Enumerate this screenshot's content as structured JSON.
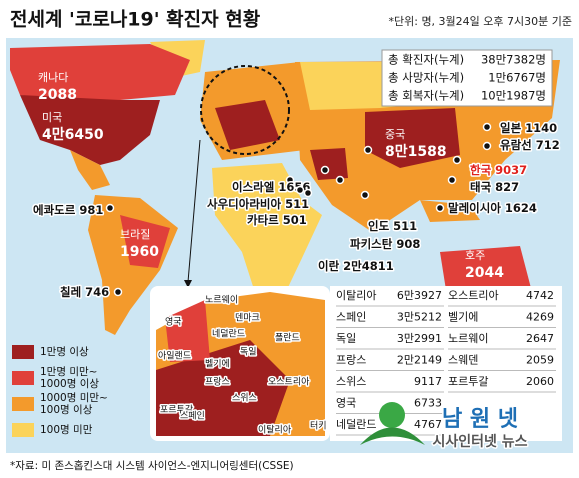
{
  "header": {
    "title": "전세계 '코로나19' 확진자 현황",
    "unit_note": "*단위: 명, 3월24일 오후 7시30분 기준"
  },
  "totals": [
    {
      "label": "총 확진자(누계)",
      "value": "38만7382명"
    },
    {
      "label": "총 사망자(누계)",
      "value": "1만6767명"
    },
    {
      "label": "총 회복자(누계)",
      "value": "10만1987명"
    }
  ],
  "map_labels": [
    {
      "name": "캐나다",
      "value": "2088",
      "color": "#ffffff"
    },
    {
      "name": "미국",
      "value": "4만6450",
      "color": "#ffffff"
    },
    {
      "name": "중국",
      "value": "8만1588",
      "color": "#ffffff"
    },
    {
      "name": "일본",
      "value": "1140",
      "color": "#111111"
    },
    {
      "name": "유람선",
      "value": "712",
      "color": "#111111"
    },
    {
      "name": "한국",
      "value": "9037",
      "color": "#e0201b"
    },
    {
      "name": "태국",
      "value": "827",
      "color": "#111111"
    },
    {
      "name": "말레이시아",
      "value": "1624",
      "color": "#111111"
    },
    {
      "name": "이스라엘",
      "value": "1656",
      "color": "#111111"
    },
    {
      "name": "사우디아라비아",
      "value": "511",
      "color": "#111111"
    },
    {
      "name": "카타르",
      "value": "501",
      "color": "#111111"
    },
    {
      "name": "인도",
      "value": "511",
      "color": "#111111"
    },
    {
      "name": "파키스탄",
      "value": "908",
      "color": "#111111"
    },
    {
      "name": "이란",
      "value": "2만4811",
      "color": "#111111"
    },
    {
      "name": "에콰도르",
      "value": "981",
      "color": "#111111"
    },
    {
      "name": "브라질",
      "value": "1960",
      "color": "#ffffff"
    },
    {
      "name": "칠레",
      "value": "746",
      "color": "#111111"
    },
    {
      "name": "호주",
      "value": "2044",
      "color": "#ffffff"
    }
  ],
  "legend": [
    {
      "label": "1만명 이상",
      "color": "#9e1f1f"
    },
    {
      "label": "1만명 미만~\n1000명 이상",
      "color": "#e0403a"
    },
    {
      "label": "1000명 미만~\n100명 이상",
      "color": "#f39a2c"
    },
    {
      "label": "100명 미만",
      "color": "#fbd35a"
    }
  ],
  "europe_labels": [
    "노르웨이",
    "영국",
    "덴마크",
    "네덜란드",
    "아일랜드",
    "독일",
    "벨기에",
    "폴란드",
    "프랑스",
    "스위스",
    "오스트리아",
    "포르투갈",
    "스페인",
    "이탈리아",
    "터키"
  ],
  "europe_table": {
    "left": [
      [
        "이탈리아",
        "6만3927"
      ],
      [
        "스페인",
        "3만5212"
      ],
      [
        "독일",
        "3만2991"
      ],
      [
        "프랑스",
        "2만2149"
      ],
      [
        "스위스",
        "9117"
      ],
      [
        "영국",
        "6733"
      ],
      [
        "네덜란드",
        "4767"
      ]
    ],
    "right": [
      [
        "오스트리아",
        "4742"
      ],
      [
        "벨기에",
        "4269"
      ],
      [
        "노르웨이",
        "2647"
      ],
      [
        "스웨덴",
        "2059"
      ],
      [
        "포르투갈",
        "2060"
      ]
    ]
  },
  "source": "*자료: 미 존스홉킨스대 시스템 사이언스-엔지니어링센터(CSSE)",
  "watermark": {
    "title": "남 원 넷",
    "subtitle": "시사인터넷 뉴스"
  }
}
